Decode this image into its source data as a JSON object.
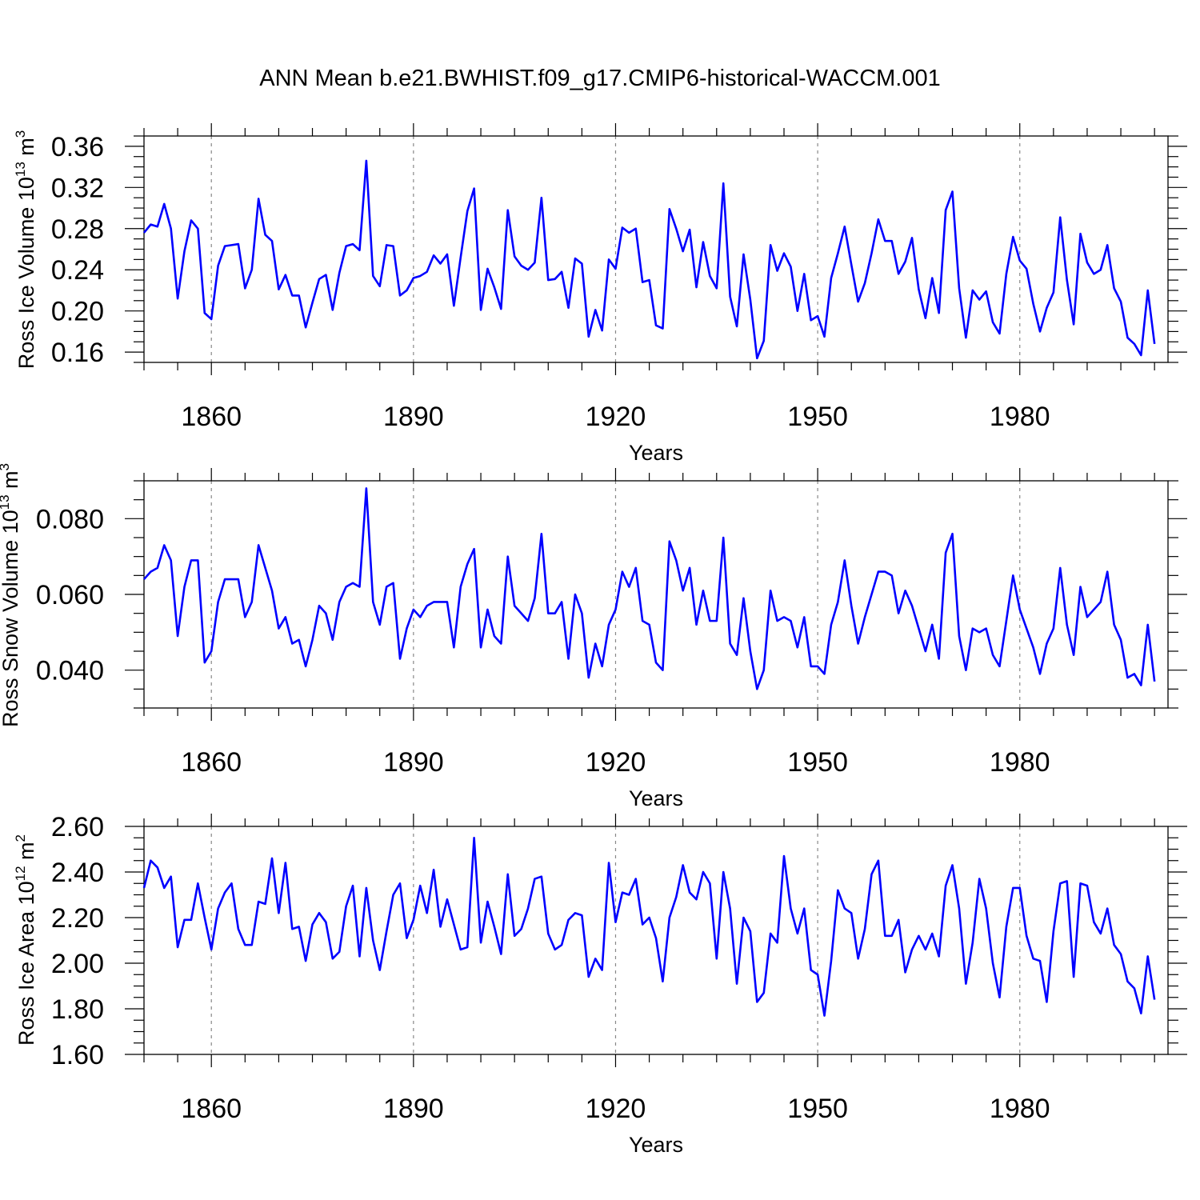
{
  "figure": {
    "title": "ANN Mean b.e21.BWHIST.f09_g17.CMIP6-historical-WACCM.001"
  },
  "colors": {
    "series": "#0000ff",
    "frame": "#000000",
    "grid": "#888888"
  },
  "chart_data": [
    {
      "type": "line",
      "ylabel": {
        "text": "Ross Ice Volume 10",
        "exponent": "13",
        "unit": " m",
        "unit_exponent": "3"
      },
      "xlabel": "Years",
      "xlim": [
        1850,
        2002
      ],
      "ylim": [
        0.15,
        0.37
      ],
      "yticks": [
        0.16,
        0.2,
        0.24,
        0.28,
        0.32,
        0.36
      ],
      "ytick_labels": [
        "0.16",
        "0.20",
        "0.24",
        "0.28",
        "0.32",
        "0.36"
      ],
      "xticks": [
        1860,
        1890,
        1920,
        1950,
        1980
      ],
      "xtick_labels": [
        "1860",
        "1890",
        "1920",
        "1950",
        "1980"
      ],
      "x_start": 1850,
      "values": [
        0.276,
        0.284,
        0.282,
        0.304,
        0.28,
        0.212,
        0.258,
        0.288,
        0.28,
        0.198,
        0.192,
        0.244,
        0.263,
        0.264,
        0.265,
        0.222,
        0.24,
        0.309,
        0.274,
        0.268,
        0.221,
        0.235,
        0.215,
        0.215,
        0.184,
        0.208,
        0.231,
        0.235,
        0.201,
        0.237,
        0.263,
        0.265,
        0.259,
        0.346,
        0.234,
        0.224,
        0.264,
        0.263,
        0.215,
        0.22,
        0.232,
        0.234,
        0.238,
        0.254,
        0.246,
        0.255,
        0.205,
        0.252,
        0.297,
        0.319,
        0.201,
        0.241,
        0.223,
        0.202,
        0.298,
        0.253,
        0.244,
        0.24,
        0.247,
        0.31,
        0.23,
        0.231,
        0.238,
        0.203,
        0.251,
        0.246,
        0.175,
        0.201,
        0.181,
        0.25,
        0.241,
        0.281,
        0.276,
        0.28,
        0.228,
        0.23,
        0.186,
        0.183,
        0.299,
        0.28,
        0.258,
        0.279,
        0.223,
        0.267,
        0.234,
        0.222,
        0.324,
        0.214,
        0.185,
        0.255,
        0.211,
        0.154,
        0.171,
        0.264,
        0.239,
        0.256,
        0.243,
        0.2,
        0.236,
        0.191,
        0.195,
        0.175,
        0.232,
        0.256,
        0.282,
        0.245,
        0.209,
        0.227,
        0.256,
        0.289,
        0.268,
        0.268,
        0.236,
        0.248,
        0.271,
        0.221,
        0.193,
        0.232,
        0.198,
        0.298,
        0.316,
        0.222,
        0.174,
        0.22,
        0.211,
        0.219,
        0.189,
        0.178,
        0.236,
        0.272,
        0.249,
        0.241,
        0.207,
        0.18,
        0.203,
        0.218,
        0.291,
        0.23,
        0.187,
        0.275,
        0.247,
        0.236,
        0.24,
        0.264,
        0.222,
        0.209,
        0.174,
        0.168,
        0.157,
        0.22,
        0.168
      ]
    },
    {
      "type": "line",
      "ylabel": {
        "text": "Ross Snow Volume 10",
        "exponent": "13",
        "unit": " m",
        "unit_exponent": "3"
      },
      "xlabel": "Years",
      "xlim": [
        1850,
        2002
      ],
      "ylim": [
        0.03,
        0.09
      ],
      "yticks": [
        0.04,
        0.06,
        0.08
      ],
      "ytick_labels": [
        "0.040",
        "0.060",
        "0.080"
      ],
      "xticks": [
        1860,
        1890,
        1920,
        1950,
        1980
      ],
      "xtick_labels": [
        "1860",
        "1890",
        "1920",
        "1950",
        "1980"
      ],
      "x_start": 1850,
      "values": [
        0.064,
        0.066,
        0.067,
        0.073,
        0.069,
        0.049,
        0.062,
        0.069,
        0.069,
        0.042,
        0.045,
        0.058,
        0.064,
        0.064,
        0.064,
        0.054,
        0.058,
        0.073,
        0.067,
        0.061,
        0.051,
        0.054,
        0.047,
        0.048,
        0.041,
        0.048,
        0.057,
        0.055,
        0.048,
        0.058,
        0.062,
        0.063,
        0.062,
        0.088,
        0.058,
        0.052,
        0.062,
        0.063,
        0.043,
        0.051,
        0.056,
        0.054,
        0.057,
        0.058,
        0.058,
        0.058,
        0.046,
        0.062,
        0.068,
        0.072,
        0.046,
        0.056,
        0.049,
        0.047,
        0.07,
        0.057,
        0.055,
        0.053,
        0.059,
        0.076,
        0.055,
        0.055,
        0.058,
        0.043,
        0.06,
        0.055,
        0.038,
        0.047,
        0.041,
        0.052,
        0.056,
        0.066,
        0.062,
        0.067,
        0.053,
        0.052,
        0.042,
        0.04,
        0.074,
        0.069,
        0.061,
        0.067,
        0.052,
        0.061,
        0.053,
        0.053,
        0.075,
        0.047,
        0.044,
        0.059,
        0.045,
        0.035,
        0.04,
        0.061,
        0.053,
        0.054,
        0.053,
        0.046,
        0.054,
        0.041,
        0.041,
        0.039,
        0.052,
        0.058,
        0.069,
        0.057,
        0.047,
        0.054,
        0.06,
        0.066,
        0.066,
        0.065,
        0.055,
        0.061,
        0.057,
        0.051,
        0.045,
        0.052,
        0.043,
        0.071,
        0.076,
        0.049,
        0.04,
        0.051,
        0.05,
        0.051,
        0.044,
        0.041,
        0.053,
        0.065,
        0.056,
        0.051,
        0.046,
        0.039,
        0.047,
        0.051,
        0.067,
        0.052,
        0.044,
        0.062,
        0.054,
        0.056,
        0.058,
        0.066,
        0.052,
        0.048,
        0.038,
        0.039,
        0.036,
        0.052,
        0.037
      ]
    },
    {
      "type": "line",
      "ylabel": {
        "text": "Ross Ice Area 10",
        "exponent": "12",
        "unit": " m",
        "unit_exponent": "2"
      },
      "xlabel": "Years",
      "xlim": [
        1850,
        2002
      ],
      "ylim": [
        1.6,
        2.6
      ],
      "yticks": [
        1.6,
        1.8,
        2.0,
        2.2,
        2.4,
        2.6
      ],
      "ytick_labels": [
        "1.60",
        "1.80",
        "2.00",
        "2.20",
        "2.40",
        "2.60"
      ],
      "xticks": [
        1860,
        1890,
        1920,
        1950,
        1980
      ],
      "xtick_labels": [
        "1860",
        "1890",
        "1920",
        "1950",
        "1980"
      ],
      "x_start": 1850,
      "values": [
        2.33,
        2.45,
        2.42,
        2.33,
        2.38,
        2.07,
        2.19,
        2.19,
        2.35,
        2.2,
        2.06,
        2.24,
        2.31,
        2.35,
        2.15,
        2.08,
        2.08,
        2.27,
        2.26,
        2.46,
        2.22,
        2.44,
        2.15,
        2.16,
        2.01,
        2.17,
        2.22,
        2.18,
        2.02,
        2.05,
        2.25,
        2.34,
        2.03,
        2.33,
        2.1,
        1.97,
        2.14,
        2.3,
        2.35,
        2.11,
        2.19,
        2.34,
        2.22,
        2.41,
        2.16,
        2.28,
        2.17,
        2.06,
        2.07,
        2.55,
        2.09,
        2.27,
        2.16,
        2.04,
        2.39,
        2.12,
        2.15,
        2.24,
        2.37,
        2.38,
        2.13,
        2.06,
        2.08,
        2.19,
        2.22,
        2.21,
        1.94,
        2.02,
        1.97,
        2.44,
        2.18,
        2.31,
        2.3,
        2.37,
        2.17,
        2.2,
        2.11,
        1.92,
        2.2,
        2.29,
        2.43,
        2.31,
        2.28,
        2.4,
        2.35,
        2.02,
        2.4,
        2.24,
        1.91,
        2.2,
        2.14,
        1.83,
        1.87,
        2.13,
        2.09,
        2.47,
        2.24,
        2.13,
        2.24,
        1.97,
        1.95,
        1.77,
        2.01,
        2.32,
        2.24,
        2.22,
        2.02,
        2.15,
        2.39,
        2.45,
        2.12,
        2.12,
        2.19,
        1.96,
        2.06,
        2.12,
        2.06,
        2.13,
        2.03,
        2.34,
        2.43,
        2.24,
        1.91,
        2.09,
        2.37,
        2.24,
        2.0,
        1.85,
        2.16,
        2.33,
        2.33,
        2.12,
        2.02,
        2.01,
        1.83,
        2.14,
        2.35,
        2.36,
        1.94,
        2.35,
        2.34,
        2.18,
        2.13,
        2.24,
        2.08,
        2.04,
        1.92,
        1.89,
        1.78,
        2.03,
        1.84
      ]
    }
  ]
}
